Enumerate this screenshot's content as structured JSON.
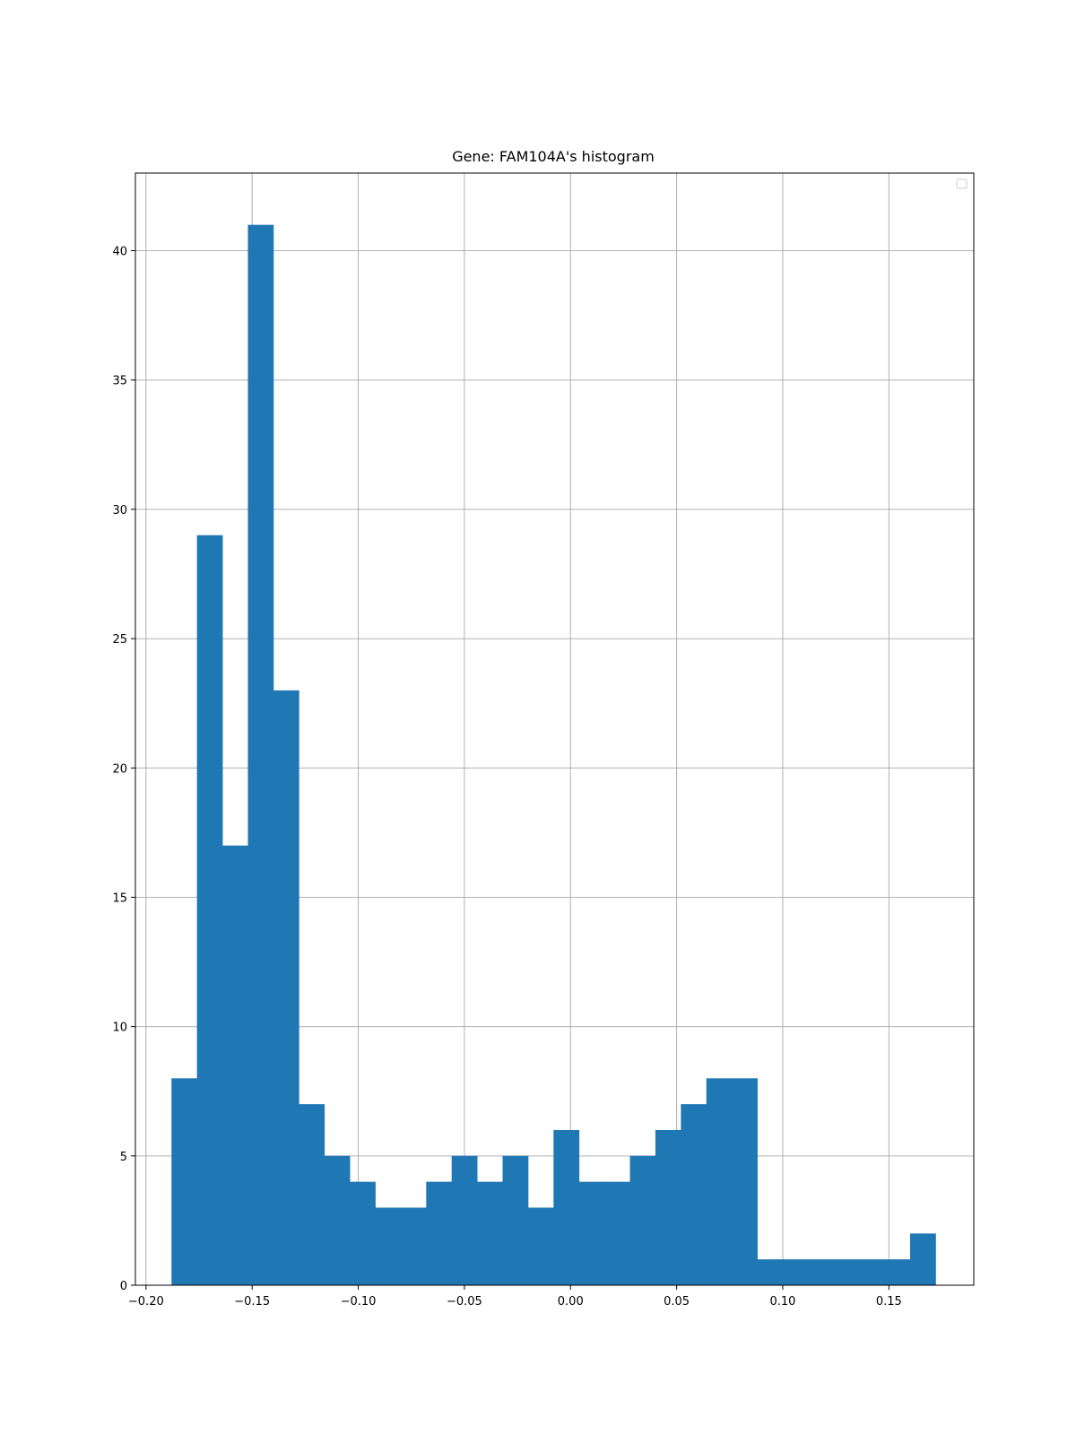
{
  "chart_data": {
    "type": "bar",
    "title": "Gene: FAM104A's histogram",
    "xlabel": "",
    "ylabel": "",
    "bin_start": -0.188,
    "bin_width": 0.012,
    "counts": [
      8,
      29,
      17,
      41,
      23,
      7,
      5,
      4,
      3,
      3,
      4,
      5,
      4,
      5,
      3,
      6,
      4,
      4,
      5,
      6,
      7,
      8,
      8,
      1,
      1,
      1,
      1,
      1,
      1,
      2
    ],
    "xlim": [
      -0.205,
      0.19
    ],
    "ylim": [
      0,
      43
    ],
    "x_ticks": [
      -0.2,
      -0.15,
      -0.1,
      -0.05,
      0.0,
      0.05,
      0.1,
      0.15
    ],
    "x_tick_labels": [
      "−0.20",
      "−0.15",
      "−0.10",
      "−0.05",
      "0.00",
      "0.05",
      "0.10",
      "0.15"
    ],
    "y_ticks": [
      0,
      5,
      10,
      15,
      20,
      25,
      30,
      35,
      40
    ],
    "y_tick_labels": [
      "0",
      "5",
      "10",
      "15",
      "20",
      "25",
      "30",
      "35",
      "40"
    ],
    "grid": true,
    "legend": "upper right (empty)",
    "colors": {
      "bar": "#1f77b4",
      "grid": "#b0b0b0",
      "axis": "#000000"
    }
  }
}
